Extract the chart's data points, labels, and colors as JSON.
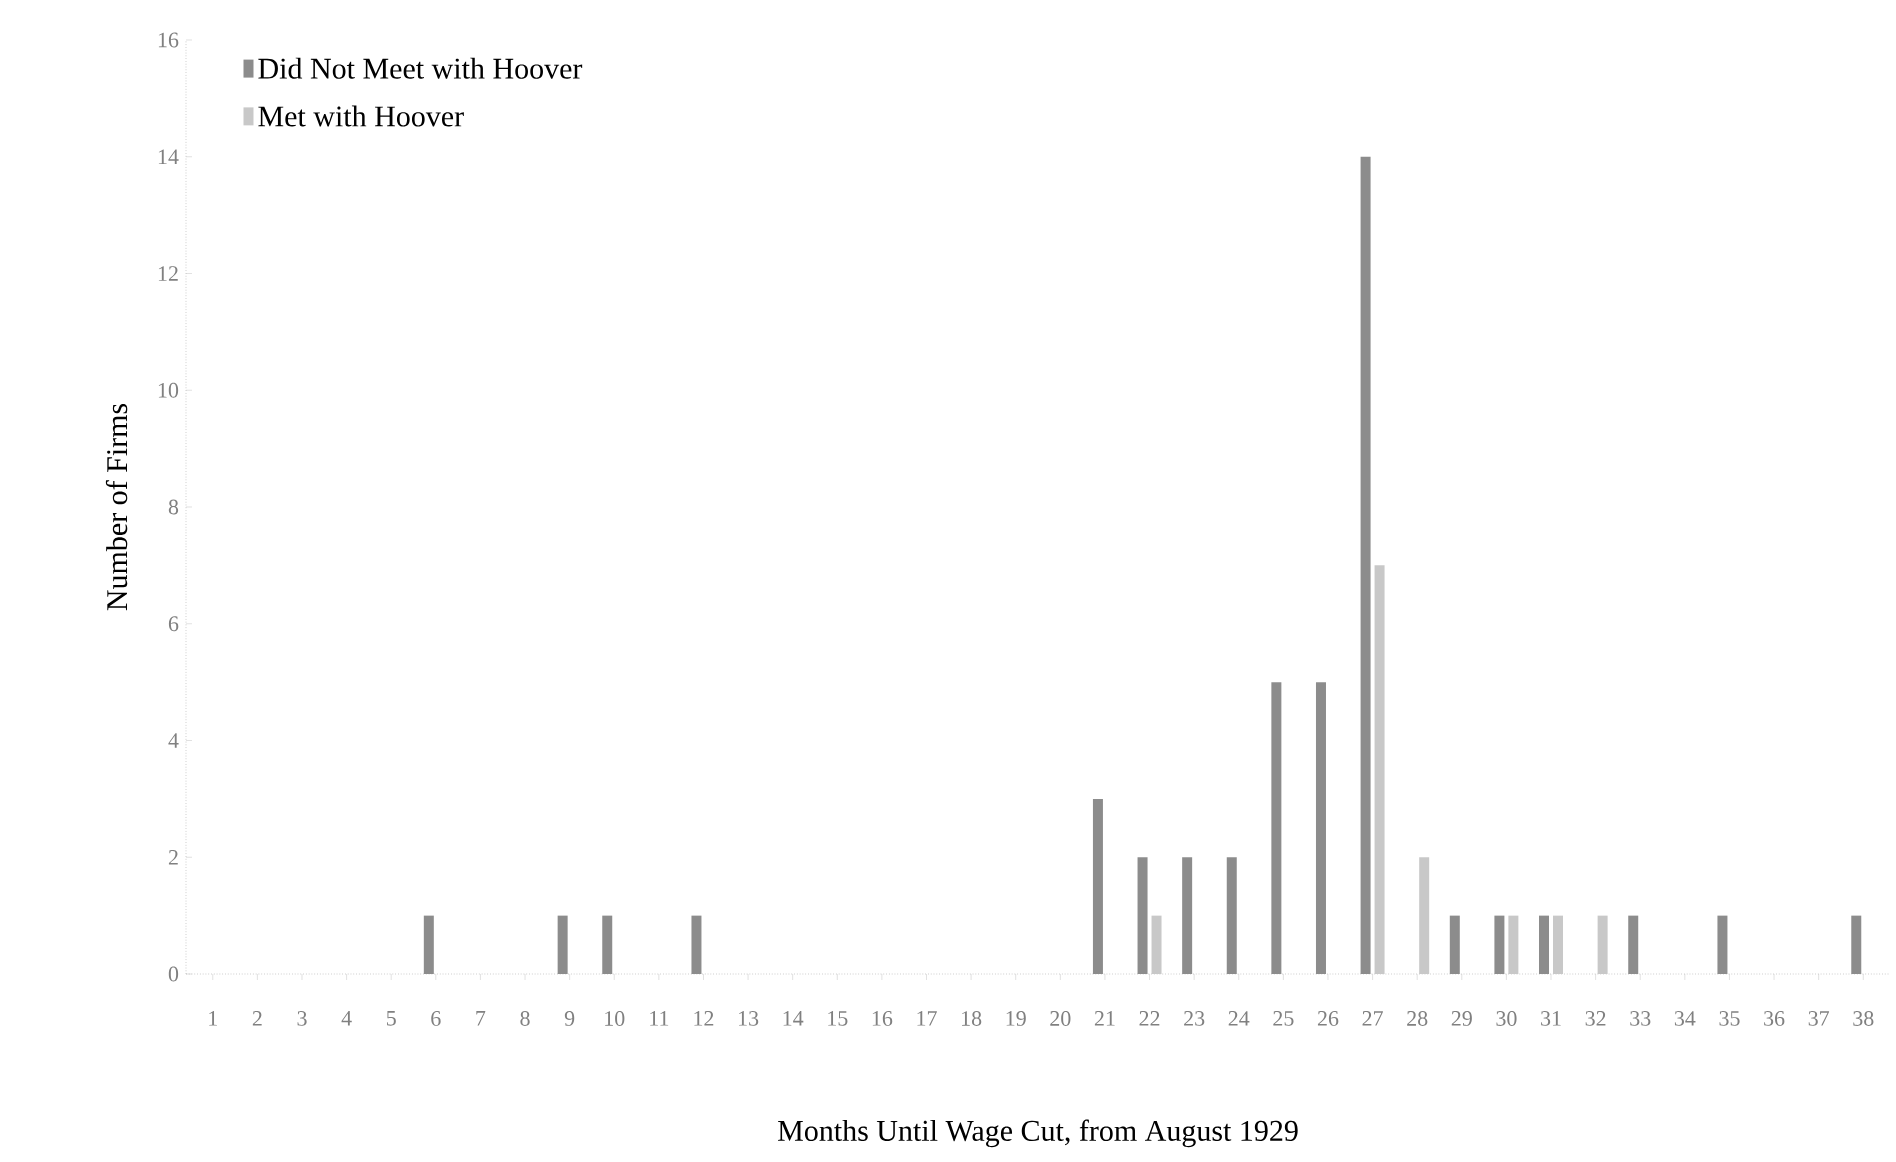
{
  "chart_data": {
    "type": "bar",
    "xlabel": "Months Until Wage Cut, from August 1929",
    "ylabel": "Number of Firms",
    "categories": [
      "1",
      "2",
      "3",
      "4",
      "5",
      "6",
      "7",
      "8",
      "9",
      "10",
      "11",
      "12",
      "13",
      "14",
      "15",
      "16",
      "17",
      "18",
      "19",
      "20",
      "21",
      "22",
      "23",
      "24",
      "25",
      "26",
      "27",
      "28",
      "29",
      "30",
      "31",
      "32",
      "33",
      "34",
      "35",
      "36",
      "37",
      "38"
    ],
    "series": [
      {
        "name": "Did Not Meet with Hoover",
        "color": "#8c8c8c",
        "values": [
          0,
          0,
          0,
          0,
          0,
          1,
          0,
          0,
          1,
          1,
          0,
          1,
          0,
          0,
          0,
          0,
          0,
          0,
          0,
          0,
          3,
          2,
          2,
          2,
          5,
          5,
          14,
          0,
          1,
          1,
          1,
          0,
          1,
          0,
          1,
          0,
          0,
          1
        ]
      },
      {
        "name": "Met with Hoover",
        "color": "#c8c8c8",
        "values": [
          0,
          0,
          0,
          0,
          0,
          0,
          0,
          0,
          0,
          0,
          0,
          0,
          0,
          0,
          0,
          0,
          0,
          0,
          0,
          0,
          0,
          1,
          0,
          0,
          0,
          0,
          7,
          2,
          0,
          1,
          1,
          1,
          0,
          0,
          0,
          0,
          0,
          0
        ]
      }
    ],
    "ylim": [
      0,
      16
    ],
    "yticks": [
      0,
      2,
      4,
      6,
      8,
      10,
      12,
      14,
      16
    ],
    "legend": "top left"
  }
}
